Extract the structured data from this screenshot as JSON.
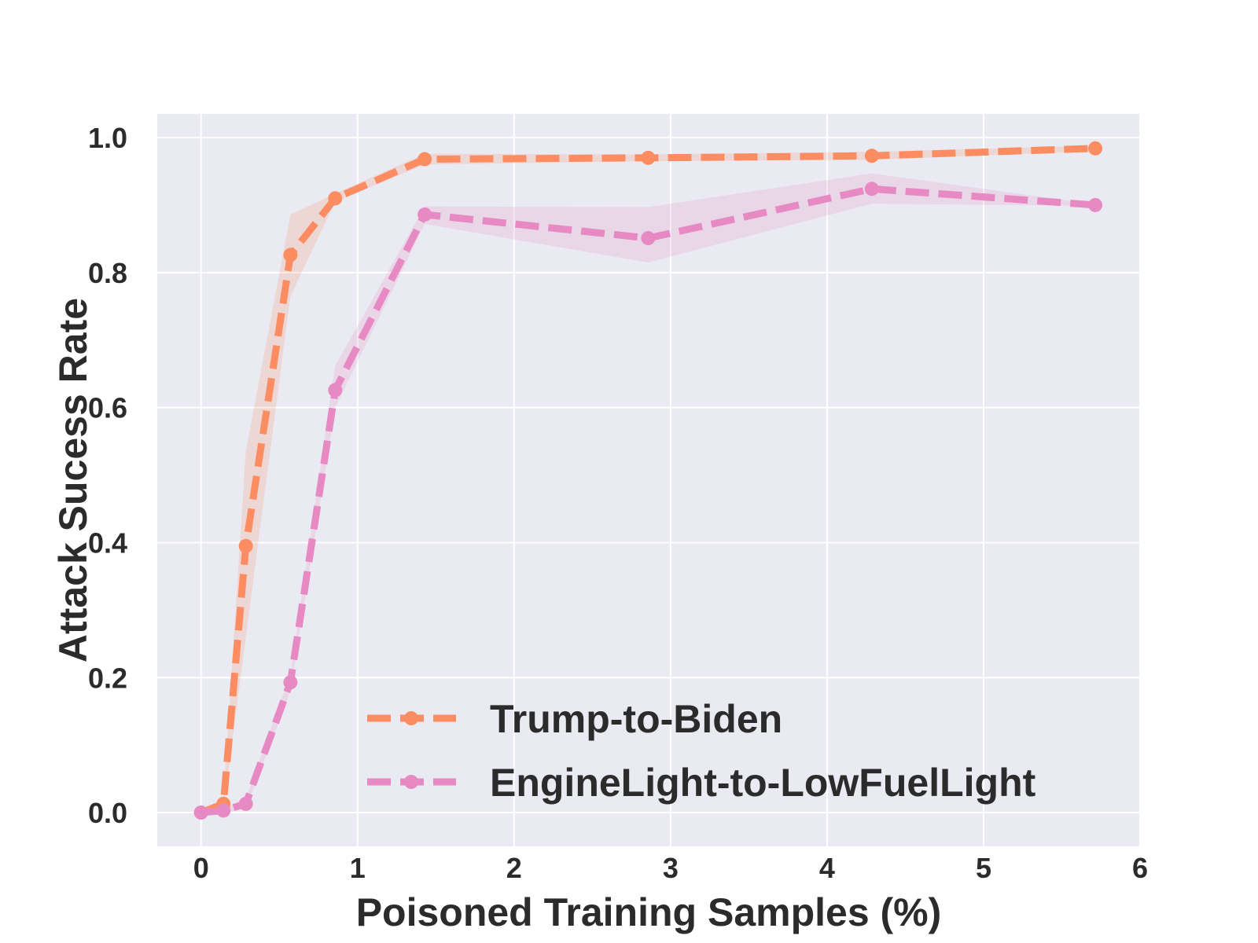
{
  "chart_data": {
    "type": "line",
    "xlabel": "Poisoned Training Samples (%)",
    "ylabel": "Attack Sucess Rate",
    "xlim": [
      -0.28,
      6.0
    ],
    "ylim": [
      -0.05,
      1.035
    ],
    "xticks": [
      0,
      1,
      2,
      3,
      4,
      5,
      6
    ],
    "xtick_labels": [
      "0",
      "1",
      "2",
      "3",
      "4",
      "5",
      "6"
    ],
    "yticks": [
      0.0,
      0.2,
      0.4,
      0.6,
      0.8,
      1.0
    ],
    "ytick_labels": [
      "0.0",
      "0.2",
      "0.4",
      "0.6",
      "0.8",
      "1.0"
    ],
    "grid": true,
    "legend_position": "lower-right",
    "background": "#eaeaf2",
    "series": [
      {
        "name": "Trump-to-Biden",
        "color": "#fc8d62",
        "x": [
          0,
          0.143,
          0.286,
          0.571,
          0.857,
          1.429,
          2.857,
          4.286,
          5.714
        ],
        "y": [
          0.0,
          0.013,
          0.395,
          0.826,
          0.91,
          0.968,
          0.97,
          0.973,
          0.984
        ],
        "lower": [
          0.0,
          0.005,
          0.26,
          0.765,
          0.905,
          0.96,
          0.965,
          0.967,
          0.98
        ],
        "upper": [
          0.0,
          0.02,
          0.535,
          0.886,
          0.917,
          0.976,
          0.975,
          0.979,
          0.988
        ]
      },
      {
        "name": "EngineLight-to-LowFuelLight",
        "color": "#e78ac3",
        "x": [
          0,
          0.143,
          0.286,
          0.571,
          0.857,
          1.429,
          2.857,
          4.286,
          5.714
        ],
        "y": [
          0.0,
          0.003,
          0.013,
          0.193,
          0.626,
          0.886,
          0.851,
          0.924,
          0.9
        ],
        "lower": [
          0.0,
          0.0,
          0.005,
          0.18,
          0.6,
          0.872,
          0.815,
          0.902,
          0.899
        ],
        "upper": [
          0.0,
          0.006,
          0.021,
          0.205,
          0.662,
          0.898,
          0.897,
          0.947,
          0.901
        ]
      }
    ]
  }
}
